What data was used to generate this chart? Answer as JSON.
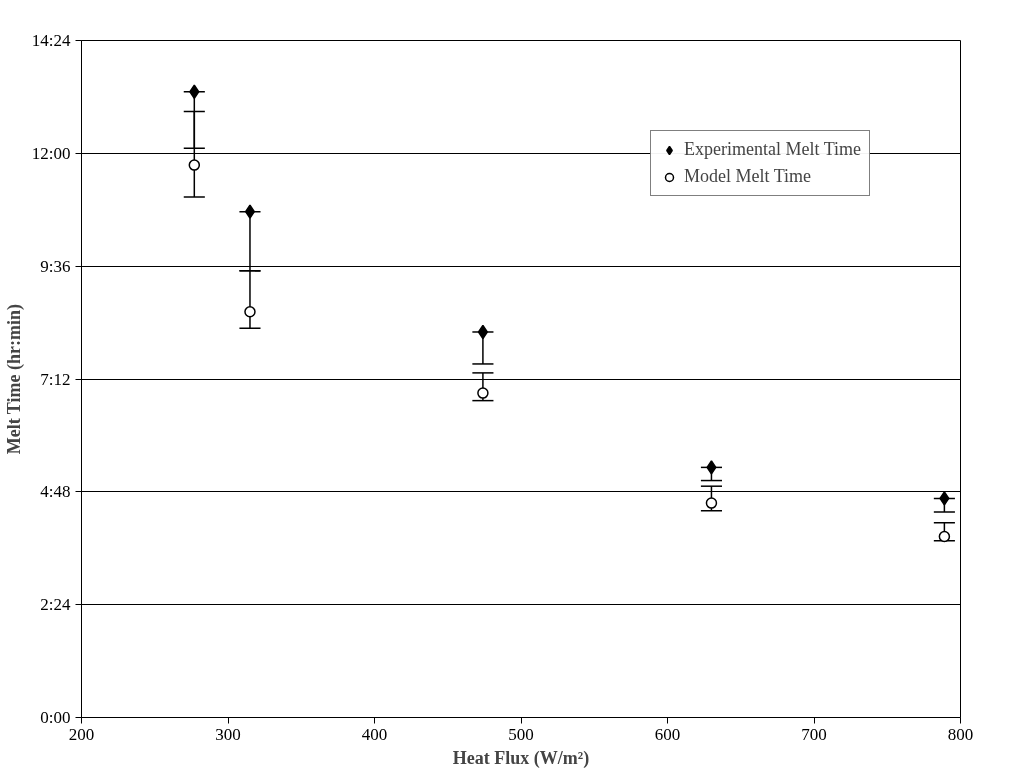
{
  "chart_data": {
    "type": "scatter",
    "xlabel": "Heat Flux (W/m²)",
    "ylabel": "Melt Time (hr:min)",
    "x": [
      277,
      315,
      474,
      630,
      789
    ],
    "series": [
      {
        "name": "Experimental Melt Time",
        "color": "#000000",
        "marker": "diamond",
        "values": [
          13.31,
          10.76,
          8.2,
          5.32,
          4.66
        ],
        "errors": [
          [
            12.11,
            13.31
          ],
          [
            9.5,
            10.76
          ],
          [
            7.52,
            8.2
          ],
          [
            5.04,
            5.32
          ],
          [
            4.37,
            4.66
          ]
        ]
      },
      {
        "name": "Model Melt Time",
        "color": "#000000",
        "marker": "circle",
        "values": [
          11.75,
          8.63,
          6.9,
          4.56,
          3.85
        ],
        "errors": [
          [
            11.07,
            12.89
          ],
          [
            8.28,
            9.5
          ],
          [
            6.74,
            7.33
          ],
          [
            4.4,
            4.92
          ],
          [
            3.76,
            4.14
          ]
        ]
      }
    ],
    "xlim": [
      200,
      800
    ],
    "xticks": [
      200,
      300,
      400,
      500,
      600,
      700,
      800
    ],
    "ylim": [
      0,
      14.4
    ],
    "yticks": [
      {
        "value": 0,
        "label": "0:00"
      },
      {
        "value": 2.4,
        "label": "2:24"
      },
      {
        "value": 4.8,
        "label": "4:48"
      },
      {
        "value": 7.2,
        "label": "7:12"
      },
      {
        "value": 9.6,
        "label": "9:36"
      },
      {
        "value": 12,
        "label": "12:00"
      },
      {
        "value": 14.4,
        "label": "14:24"
      }
    ],
    "grid": "y",
    "legend": "top right"
  }
}
